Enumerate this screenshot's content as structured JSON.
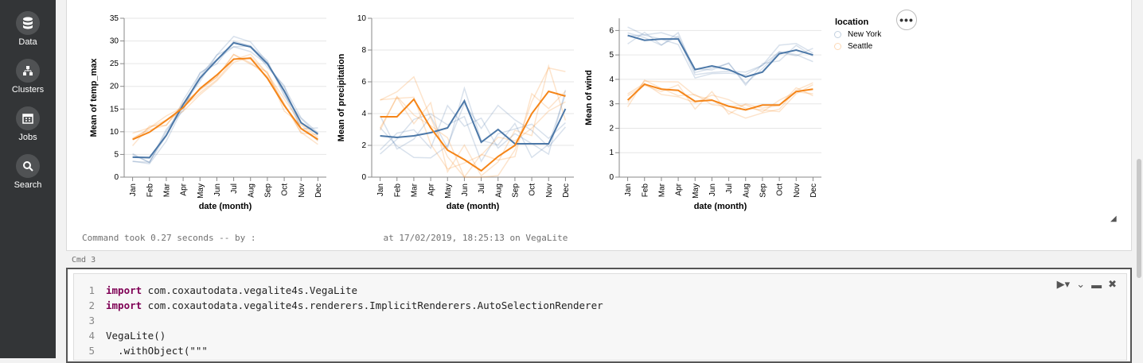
{
  "sidebar": {
    "items": [
      {
        "label": "Data",
        "icon": "database-icon"
      },
      {
        "label": "Clusters",
        "icon": "clusters-icon"
      },
      {
        "label": "Jobs",
        "icon": "calendar-icon"
      },
      {
        "label": "Search",
        "icon": "search-icon"
      }
    ]
  },
  "output": {
    "cmd_took_prefix": "Command took 0.27 seconds -- by :",
    "cmd_took_suffix": "at 17/02/2019, 18:25:13 on VegaLite"
  },
  "cmd_label": "Cmd 3",
  "more_button": "•••",
  "legend": {
    "title": "location",
    "items": [
      {
        "label": "New York",
        "color": "#4c78a8"
      },
      {
        "label": "Seattle",
        "color": "#f58518"
      }
    ]
  },
  "code": {
    "lines": [
      {
        "num": "1",
        "kw": "import",
        "text": " com.coxautodata.vegalite4s.VegaLite"
      },
      {
        "num": "2",
        "kw": "import",
        "text": " com.coxautodata.vegalite4s.renderers.ImplicitRenderers.AutoSelectionRenderer"
      },
      {
        "num": "3",
        "kw": "",
        "text": ""
      },
      {
        "num": "4",
        "kw": "",
        "text": "VegaLite()"
      },
      {
        "num": "5",
        "kw": "",
        "text": "  .withObject(\"\"\""
      }
    ]
  },
  "chart_data": [
    {
      "type": "line",
      "xlabel": "date (month)",
      "ylabel": "Mean of temp_max",
      "categories": [
        "Jan",
        "Feb",
        "Mar",
        "Apr",
        "May",
        "Jun",
        "Jul",
        "Aug",
        "Sep",
        "Oct",
        "Nov",
        "Dec"
      ],
      "ylim": [
        0,
        35
      ],
      "yticks": [
        0,
        5,
        10,
        15,
        20,
        25,
        30,
        35
      ],
      "series": [
        {
          "name": "New York",
          "values": [
            4.4,
            4.3,
            9.2,
            16.0,
            21.8,
            25.8,
            29.6,
            28.7,
            25.0,
            19.0,
            12.0,
            9.5
          ]
        },
        {
          "name": "Seattle",
          "values": [
            8.3,
            9.9,
            12.5,
            15.3,
            19.5,
            22.5,
            26.0,
            26.2,
            21.8,
            15.8,
            10.7,
            8.3
          ]
        }
      ]
    },
    {
      "type": "line",
      "xlabel": "date (month)",
      "ylabel": "Mean of precipitation",
      "categories": [
        "Jan",
        "Feb",
        "Mar",
        "Apr",
        "May",
        "Jun",
        "Jul",
        "Aug",
        "Sep",
        "Oct",
        "Nov",
        "Dec"
      ],
      "ylim": [
        0,
        10
      ],
      "yticks": [
        0,
        2,
        4,
        6,
        8,
        10
      ],
      "series": [
        {
          "name": "New York",
          "values": [
            2.6,
            2.5,
            2.6,
            2.8,
            3.1,
            4.8,
            2.2,
            3.0,
            2.1,
            2.1,
            2.1,
            4.3
          ]
        },
        {
          "name": "Seattle",
          "values": [
            3.8,
            3.8,
            4.9,
            3.1,
            1.7,
            1.1,
            0.4,
            1.3,
            2.0,
            4.0,
            5.4,
            5.1
          ]
        }
      ]
    },
    {
      "type": "line",
      "xlabel": "date (month)",
      "ylabel": "Mean of wind",
      "categories": [
        "Jan",
        "Feb",
        "Mar",
        "Apr",
        "May",
        "Jun",
        "Jul",
        "Aug",
        "Sep",
        "Oct",
        "Nov",
        "Dec"
      ],
      "ylim": [
        0,
        6.5
      ],
      "yticks": [
        0,
        1,
        2,
        3,
        4,
        5,
        6
      ],
      "series": [
        {
          "name": "New York",
          "values": [
            5.8,
            5.6,
            5.65,
            5.65,
            4.4,
            4.55,
            4.4,
            4.1,
            4.3,
            5.05,
            5.2,
            5.0
          ]
        },
        {
          "name": "Seattle",
          "values": [
            3.15,
            3.8,
            3.6,
            3.55,
            3.1,
            3.15,
            2.9,
            2.75,
            2.95,
            2.95,
            3.5,
            3.6
          ]
        }
      ]
    }
  ]
}
